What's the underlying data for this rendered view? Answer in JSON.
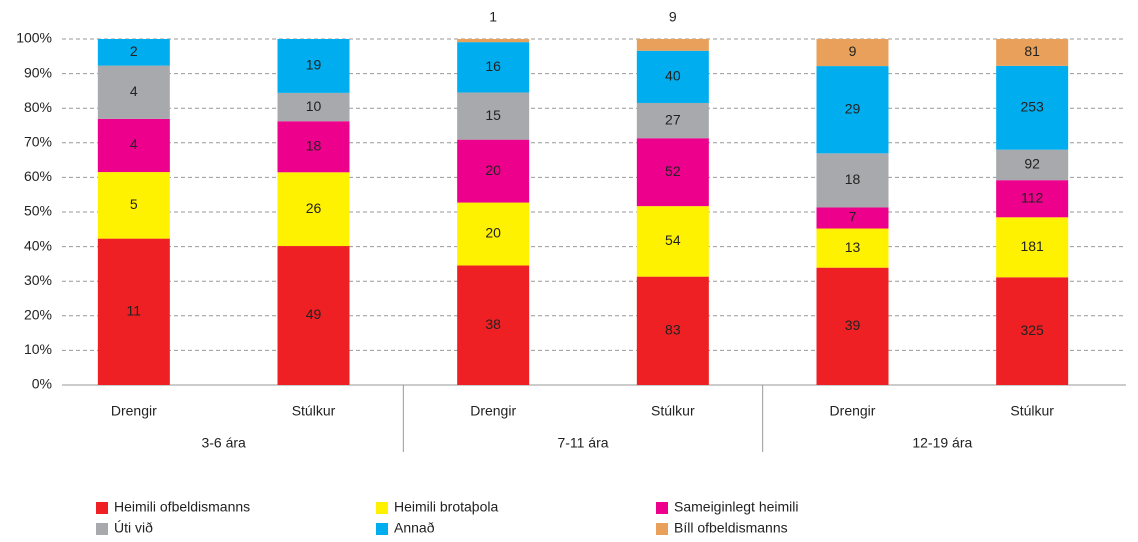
{
  "chart_data": {
    "type": "bar",
    "stack": "percent",
    "categories": [
      "Drengir",
      "Stúlkur",
      "Drengir",
      "Stúlkur",
      "Drengir",
      "Stúlkur"
    ],
    "groups": [
      "3-6 ára",
      "7-11 ára",
      "12-19 ára"
    ],
    "series": [
      {
        "name": "Heimili ofbeldismanns",
        "color": "#ee2024",
        "values": [
          11,
          49,
          38,
          83,
          39,
          325
        ]
      },
      {
        "name": "Heimili brotaþola",
        "color": "#fff200",
        "values": [
          5,
          26,
          20,
          54,
          13,
          181
        ]
      },
      {
        "name": "Sameiginlegt heimili",
        "color": "#ec008c",
        "values": [
          4,
          18,
          20,
          52,
          7,
          112
        ]
      },
      {
        "name": "Úti við",
        "color": "#a7a9ac",
        "values": [
          4,
          10,
          15,
          27,
          18,
          92
        ]
      },
      {
        "name": "Annað",
        "color": "#00aeef",
        "values": [
          2,
          19,
          16,
          40,
          29,
          253
        ]
      },
      {
        "name": "Bíll ofbeldismanns",
        "color": "#e8a05a",
        "values": [
          0,
          0,
          1,
          9,
          9,
          81
        ]
      }
    ],
    "ylim": [
      0,
      100
    ],
    "yticks": [
      {
        "value": 0,
        "label": "0%"
      },
      {
        "value": 10,
        "label": "10%"
      },
      {
        "value": 20,
        "label": "20%"
      },
      {
        "value": 30,
        "label": "30%"
      },
      {
        "value": 40,
        "label": "40%"
      },
      {
        "value": 50,
        "label": "50%"
      },
      {
        "value": 60,
        "label": "60%"
      },
      {
        "value": 70,
        "label": "70%"
      },
      {
        "value": 80,
        "label": "80%"
      },
      {
        "value": 90,
        "label": "90%"
      },
      {
        "value": 100,
        "label": "100%"
      }
    ],
    "grid": true,
    "legend": "bottom"
  }
}
